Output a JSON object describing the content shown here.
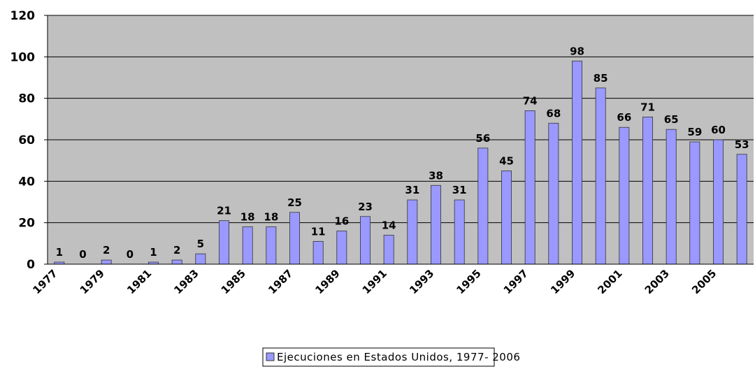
{
  "chart_data": {
    "type": "bar",
    "categories": [
      "1977",
      null,
      "1979",
      null,
      "1981",
      null,
      "1983",
      null,
      "1985",
      null,
      "1987",
      null,
      "1989",
      null,
      "1991",
      null,
      "1993",
      null,
      "1995",
      null,
      "1997",
      null,
      "1999",
      null,
      "2001",
      null,
      "2003",
      null,
      "2005",
      null
    ],
    "series": [
      {
        "name": "Ejecuciones en Estados Unidos, 1977- 2006",
        "color": "#9999ff",
        "values": [
          1,
          0,
          2,
          0,
          1,
          2,
          5,
          21,
          18,
          18,
          25,
          11,
          16,
          23,
          14,
          31,
          38,
          31,
          56,
          45,
          74,
          68,
          98,
          85,
          66,
          71,
          65,
          59,
          60,
          53
        ]
      }
    ],
    "ylim": [
      0,
      120
    ],
    "yticks": [
      0,
      20,
      40,
      60,
      80,
      100,
      120
    ],
    "grid": true,
    "legend": "bottom"
  }
}
